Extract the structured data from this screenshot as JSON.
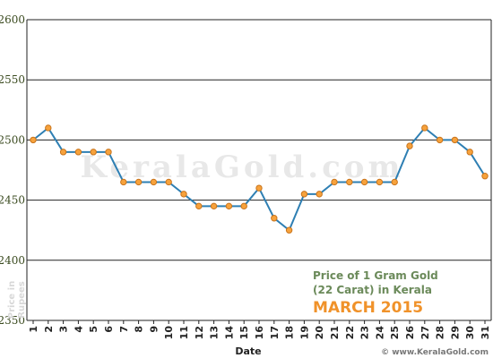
{
  "chart_data": {
    "type": "line",
    "xlabel": "Date",
    "ylabel_lines": [
      "Price in",
      "Rupees"
    ],
    "title_lines": [
      "Price of 1 Gram Gold",
      "(22 Carat) in Kerala"
    ],
    "subtitle": "MARCH 2015",
    "watermark": "KeralaGold.com",
    "source": "© www.KeralaGold.com",
    "ylim": [
      2350,
      2600
    ],
    "yticks": [
      2350,
      2400,
      2450,
      2500,
      2550,
      2600
    ],
    "grid": true,
    "x": [
      "1",
      "2",
      "3",
      "4",
      "5",
      "6",
      "7",
      "8",
      "9",
      "10",
      "11",
      "12",
      "13",
      "14",
      "15",
      "16",
      "17",
      "18",
      "19",
      "20",
      "21",
      "22",
      "23",
      "24",
      "25",
      "26",
      "27",
      "28",
      "29",
      "30",
      "31"
    ],
    "series": [
      {
        "values": [
          2500,
          2510,
          2490,
          2490,
          2490,
          2490,
          2465,
          2465,
          2465,
          2465,
          2455,
          2445,
          2445,
          2445,
          2445,
          2460,
          2435,
          2425,
          2455,
          2455,
          2465,
          2465,
          2465,
          2465,
          2465,
          2495,
          2510,
          2500,
          2500,
          2490,
          2470
        ]
      }
    ],
    "colors": {
      "line": "#2e7fb3",
      "marker_fill": "#f7a23c",
      "marker_stroke": "#c8741c",
      "grid": "#222222"
    }
  }
}
